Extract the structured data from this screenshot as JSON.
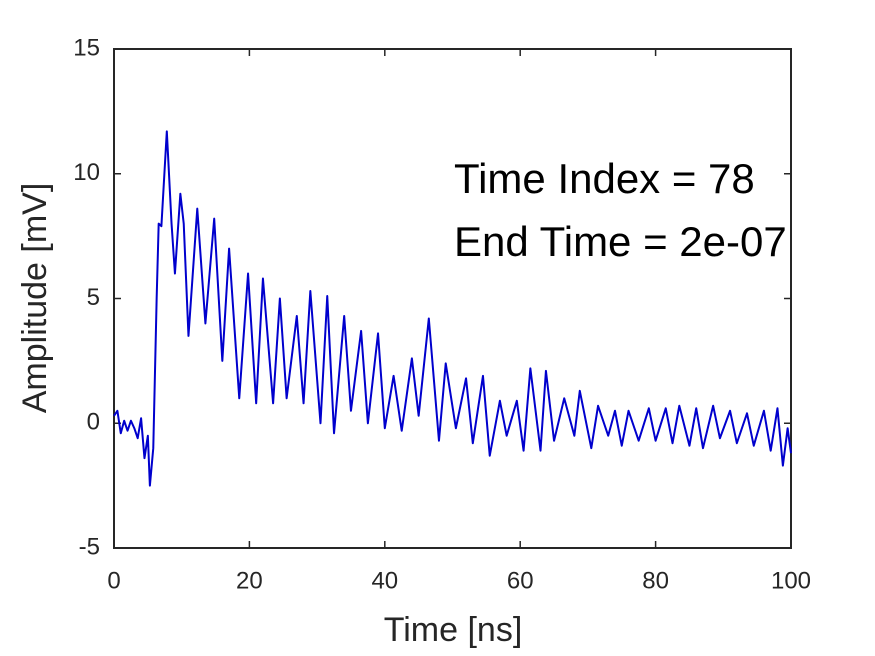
{
  "chart_data": {
    "type": "line",
    "xlabel": "Time [ns]",
    "ylabel": "Amplitude [mV]",
    "annotations": [
      "Time Index = 78",
      "End Time = 2e-07"
    ],
    "x": [
      0,
      0.5,
      1,
      1.5,
      2,
      2.5,
      3,
      3.5,
      4,
      4.5,
      5,
      5.3,
      5.8,
      6.3,
      6.6,
      7,
      7.8,
      8.5,
      9,
      9.8,
      10.3,
      11,
      12.3,
      13.5,
      14.8,
      16,
      17,
      18.5,
      19.8,
      21,
      22,
      23.5,
      24.5,
      25.5,
      27,
      28,
      29,
      30.5,
      31.5,
      32.5,
      34,
      35,
      36.5,
      37.5,
      39,
      40,
      41.3,
      42.5,
      44,
      45,
      46.5,
      48,
      49,
      50.5,
      52,
      53,
      54.5,
      55.5,
      57,
      58,
      59.5,
      60.5,
      61.5,
      63,
      63.8,
      65,
      66.5,
      68,
      68.8,
      70.5,
      71.5,
      73,
      74,
      75,
      76,
      77.5,
      79,
      80,
      81.5,
      82.5,
      83.5,
      85,
      86,
      87,
      88.5,
      89.5,
      91,
      92,
      93.5,
      94.5,
      96,
      97,
      98,
      98.8,
      99.5,
      100
    ],
    "values": [
      0.3,
      0.5,
      -0.4,
      0.1,
      -0.3,
      0.1,
      -0.2,
      -0.6,
      0.2,
      -1.4,
      -0.5,
      -2.5,
      -1,
      5,
      8,
      7.9,
      11.7,
      8,
      6,
      9.2,
      8,
      3.5,
      8.6,
      4,
      8.2,
      2.5,
      7,
      1,
      6,
      0.8,
      5.8,
      0.8,
      5,
      1,
      4.3,
      0.8,
      5.3,
      0,
      5.1,
      -0.4,
      4.3,
      0.5,
      3.7,
      0,
      3.6,
      -0.2,
      1.9,
      -0.3,
      2.6,
      0.3,
      4.2,
      -0.7,
      2.4,
      -0.2,
      1.8,
      -0.8,
      1.9,
      -1.3,
      0.9,
      -0.5,
      0.9,
      -1.1,
      2.2,
      -1.1,
      2.1,
      -0.7,
      1,
      -0.5,
      1.3,
      -1,
      0.7,
      -0.5,
      0.5,
      -0.9,
      0.5,
      -0.7,
      0.6,
      -0.7,
      0.6,
      -0.8,
      0.7,
      -0.9,
      0.6,
      -1,
      0.7,
      -0.6,
      0.5,
      -0.8,
      0.4,
      -0.9,
      0.5,
      -1.1,
      0.6,
      -1.7,
      -0.2,
      -1.2
    ],
    "color": "#0000cd",
    "xlim": [
      0,
      100
    ],
    "xticks": [
      0,
      20,
      40,
      60,
      80,
      100
    ],
    "ylim": [
      -5,
      15
    ],
    "yticks": [
      -5,
      0,
      5,
      10,
      15
    ],
    "grid": false
  }
}
